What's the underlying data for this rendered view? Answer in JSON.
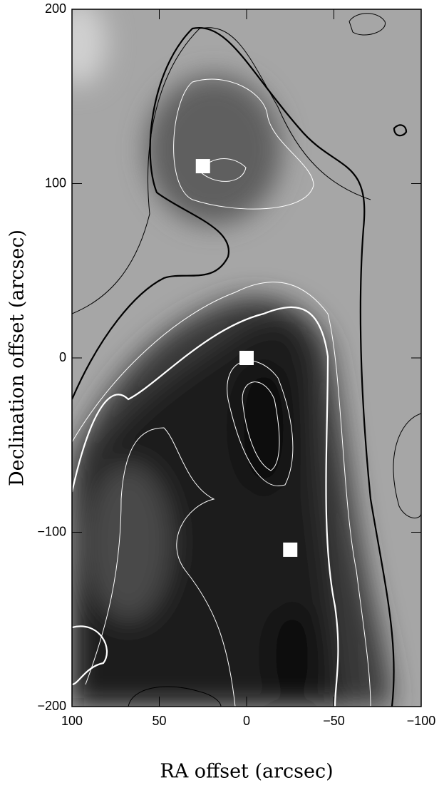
{
  "chart_data": {
    "type": "scatter",
    "marker": "square",
    "x_label": "RA offset (arcsec)",
    "y_label": "Declination offset (arcsec)",
    "xlim": [
      100,
      -100
    ],
    "ylim": [
      -200,
      200
    ],
    "xticks": [
      100,
      50,
      0,
      {
        "value": -50,
        "label": "−50"
      },
      {
        "value": -100,
        "label": "−100"
      }
    ],
    "yticks": [
      {
        "value": -200,
        "label": "−200"
      },
      {
        "value": -100,
        "label": "−100"
      },
      0,
      100,
      200
    ],
    "series": [
      {
        "color": "#ffffff",
        "x": [
          25,
          0,
          -25
        ],
        "values": [
          110,
          0,
          -110
        ]
      }
    ]
  }
}
